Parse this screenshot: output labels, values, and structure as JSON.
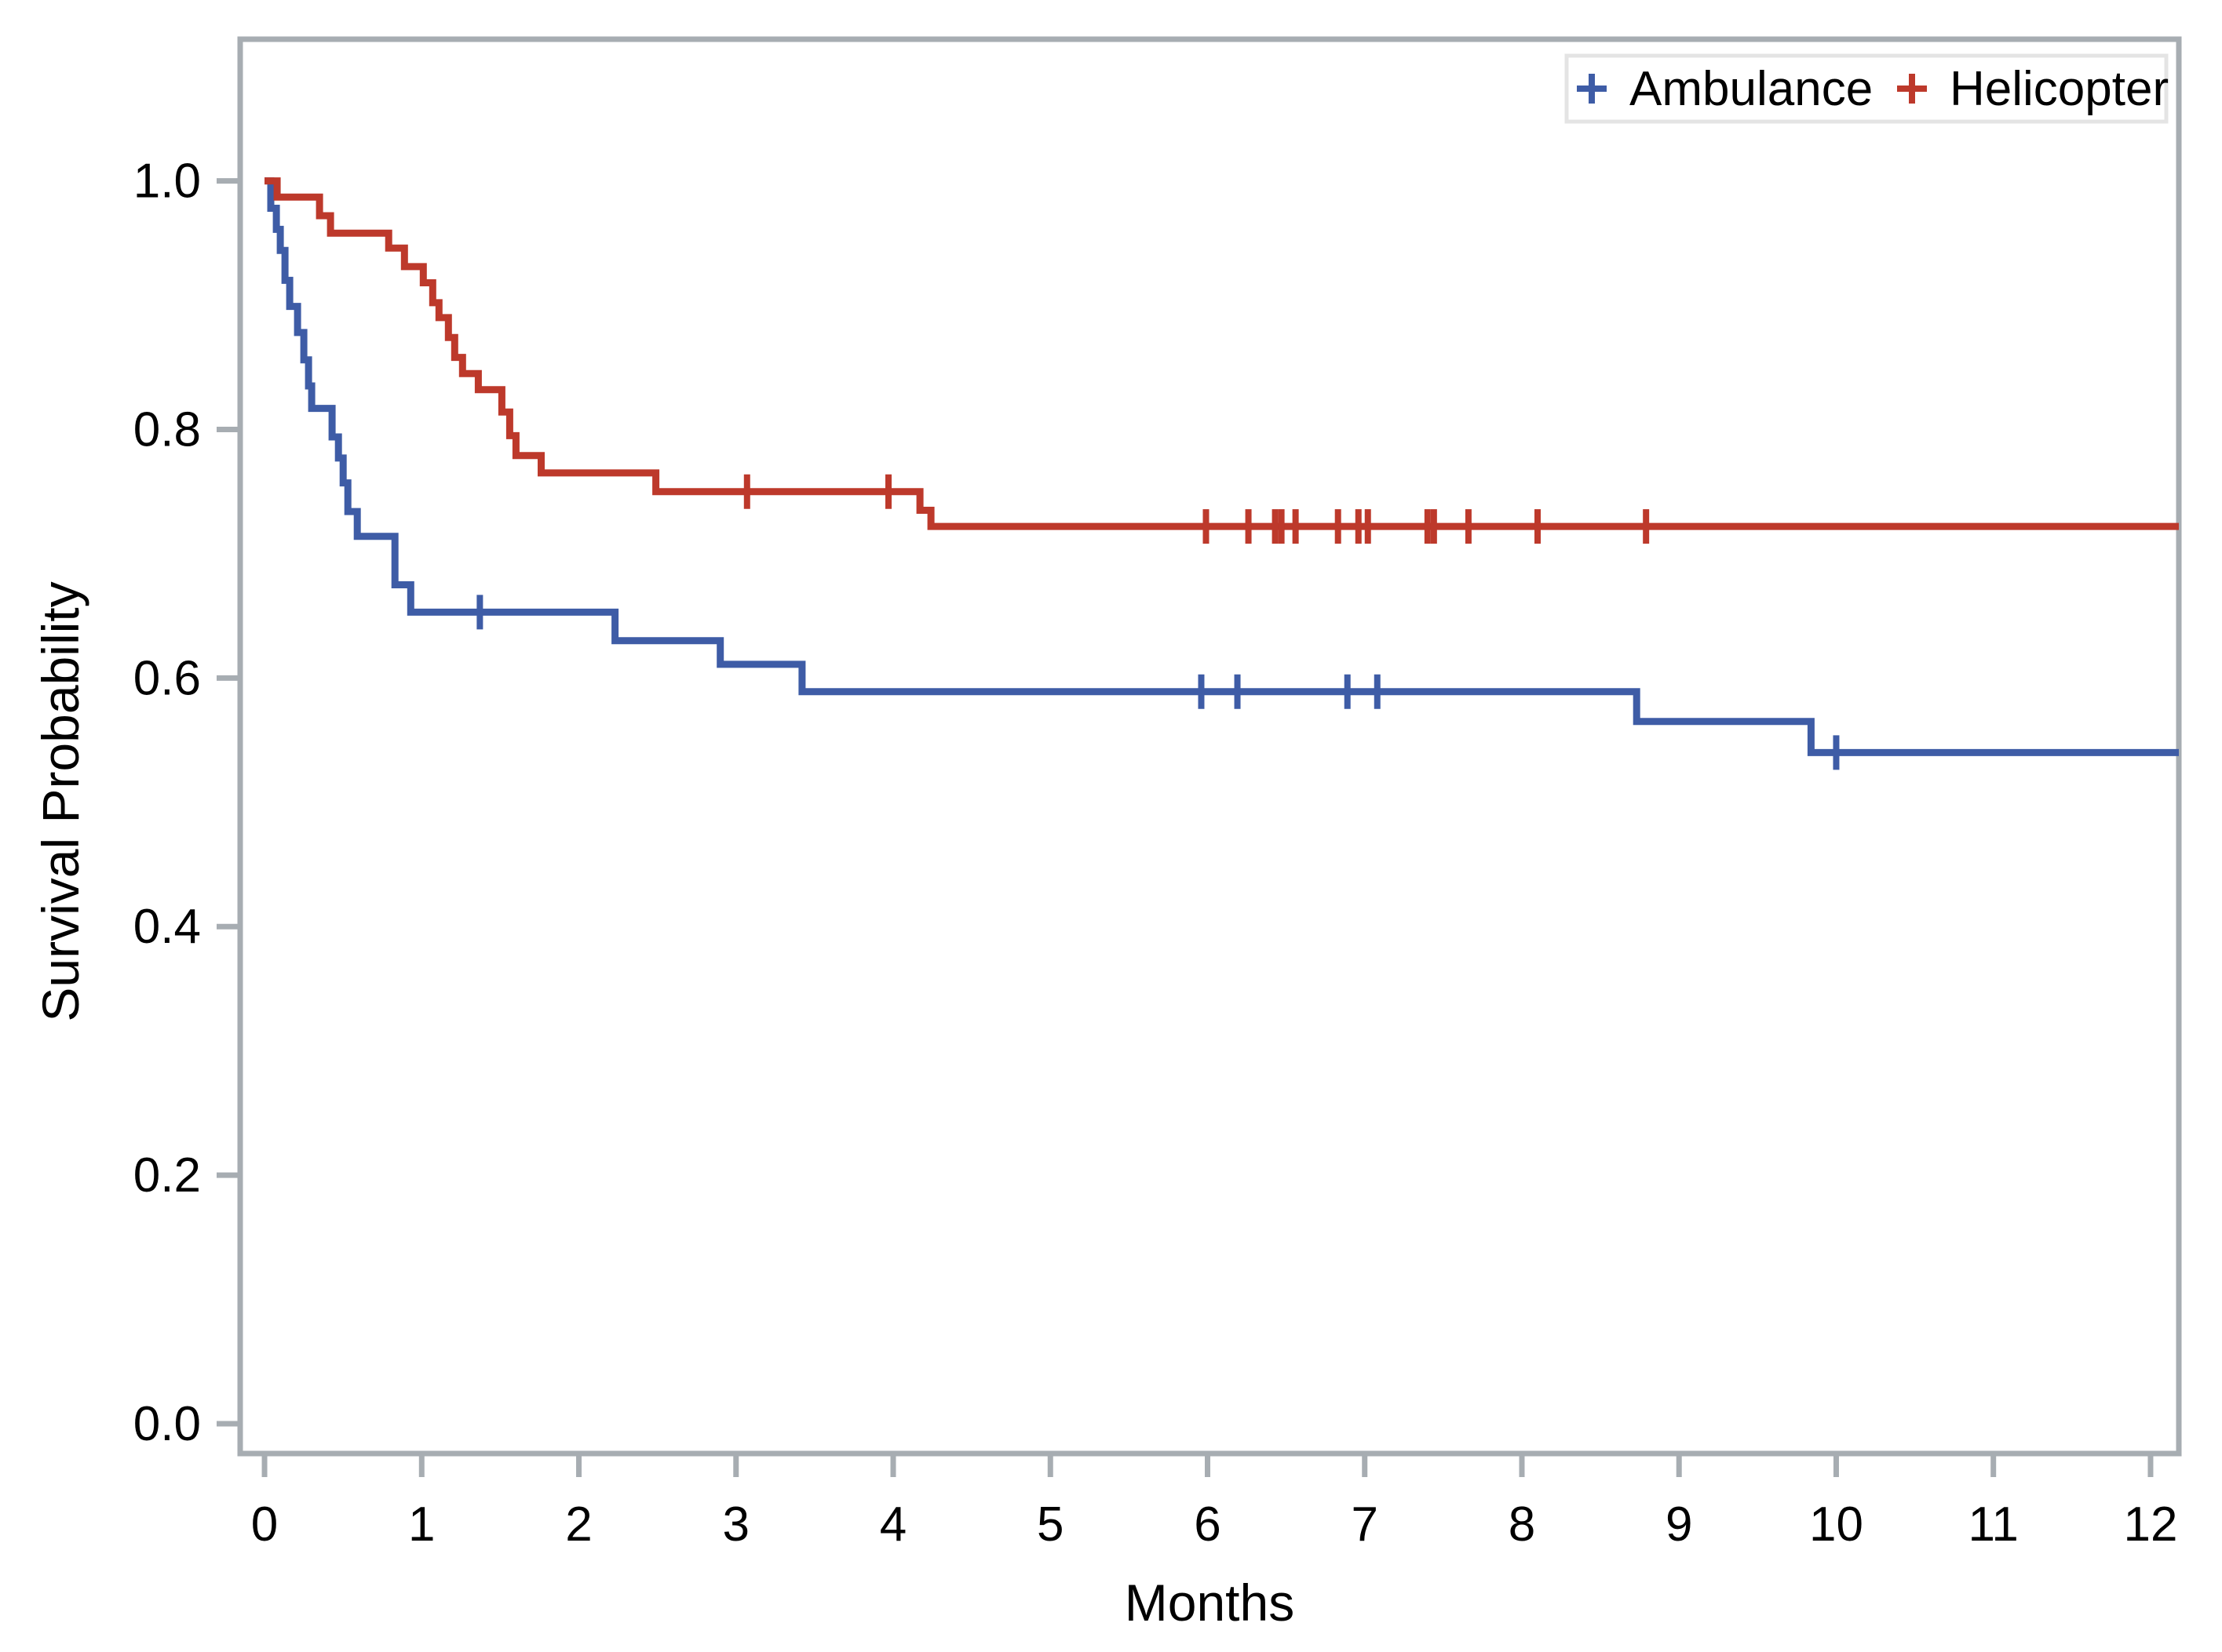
{
  "figure": {
    "background": "#ffffff",
    "axis_color": "#a7adb2",
    "text_color": "#000000",
    "legend": {
      "border_color": "#e4e4e4",
      "fill": "#ffffff",
      "position": "top-right-inside",
      "marker_glyph": "+"
    }
  },
  "chart_data": {
    "type": "line",
    "subtype": "kaplan_meier_step_survival",
    "title": "",
    "xlabel": "Months",
    "ylabel": "Survival Probability",
    "grid": false,
    "xlim": [
      -0.155,
      12.18
    ],
    "ylim": [
      -0.024,
      1.114
    ],
    "x_ticks": [
      0,
      1,
      2,
      3,
      4,
      5,
      6,
      7,
      8,
      9,
      10,
      11,
      12
    ],
    "x_tick_labels": [
      "0",
      "1",
      "2",
      "3",
      "4",
      "5",
      "6",
      "7",
      "8",
      "9",
      "10",
      "11",
      "12"
    ],
    "y_ticks": [
      0.0,
      0.2,
      0.4,
      0.6,
      0.8,
      1.0
    ],
    "y_tick_labels": [
      "0.0",
      "0.2",
      "0.4",
      "0.6",
      "0.8",
      "1.0"
    ],
    "series": [
      {
        "name": "Ambulance",
        "color": "#3e5ca6",
        "marker": "+",
        "steps": [
          [
            0,
            1.0
          ],
          [
            0.04,
            0.978
          ],
          [
            0.075,
            0.961
          ],
          [
            0.1,
            0.944
          ],
          [
            0.13,
            0.92
          ],
          [
            0.16,
            0.899
          ],
          [
            0.21,
            0.878
          ],
          [
            0.25,
            0.856
          ],
          [
            0.28,
            0.835
          ],
          [
            0.3,
            0.817
          ],
          [
            0.43,
            0.794
          ],
          [
            0.47,
            0.777
          ],
          [
            0.5,
            0.757
          ],
          [
            0.53,
            0.734
          ],
          [
            0.59,
            0.714
          ],
          [
            0.83,
            0.675
          ],
          [
            0.93,
            0.653
          ],
          [
            2.23,
            0.63
          ],
          [
            2.9,
            0.611
          ],
          [
            3.42,
            0.589
          ],
          [
            8.73,
            0.565
          ],
          [
            9.84,
            0.54
          ],
          [
            12.18,
            0.54
          ]
        ],
        "censors": [
          [
            1.37,
            0.653
          ],
          [
            5.96,
            0.589
          ],
          [
            6.19,
            0.589
          ],
          [
            6.89,
            0.589
          ],
          [
            7.08,
            0.589
          ],
          [
            10.0,
            0.54
          ]
        ]
      },
      {
        "name": "Helicopter",
        "color": "#bd392b",
        "marker": "+",
        "steps": [
          [
            0,
            1.0
          ],
          [
            0.08,
            0.987
          ],
          [
            0.35,
            0.972
          ],
          [
            0.42,
            0.958
          ],
          [
            0.79,
            0.946
          ],
          [
            0.89,
            0.931
          ],
          [
            1.01,
            0.918
          ],
          [
            1.07,
            0.902
          ],
          [
            1.11,
            0.89
          ],
          [
            1.17,
            0.874
          ],
          [
            1.21,
            0.858
          ],
          [
            1.26,
            0.845
          ],
          [
            1.36,
            0.832
          ],
          [
            1.51,
            0.814
          ],
          [
            1.56,
            0.795
          ],
          [
            1.6,
            0.779
          ],
          [
            1.76,
            0.765
          ],
          [
            2.49,
            0.75
          ],
          [
            4.17,
            0.735
          ],
          [
            4.24,
            0.722
          ],
          [
            12.18,
            0.722
          ]
        ],
        "censors": [
          [
            3.07,
            0.75
          ],
          [
            3.97,
            0.75
          ],
          [
            5.99,
            0.722
          ],
          [
            6.26,
            0.722
          ],
          [
            6.43,
            0.722
          ],
          [
            6.47,
            0.722
          ],
          [
            6.56,
            0.722
          ],
          [
            6.83,
            0.722
          ],
          [
            6.96,
            0.722
          ],
          [
            7.02,
            0.722
          ],
          [
            7.4,
            0.722
          ],
          [
            7.44,
            0.722
          ],
          [
            7.66,
            0.722
          ],
          [
            8.1,
            0.722
          ],
          [
            8.79,
            0.722
          ]
        ]
      }
    ]
  }
}
